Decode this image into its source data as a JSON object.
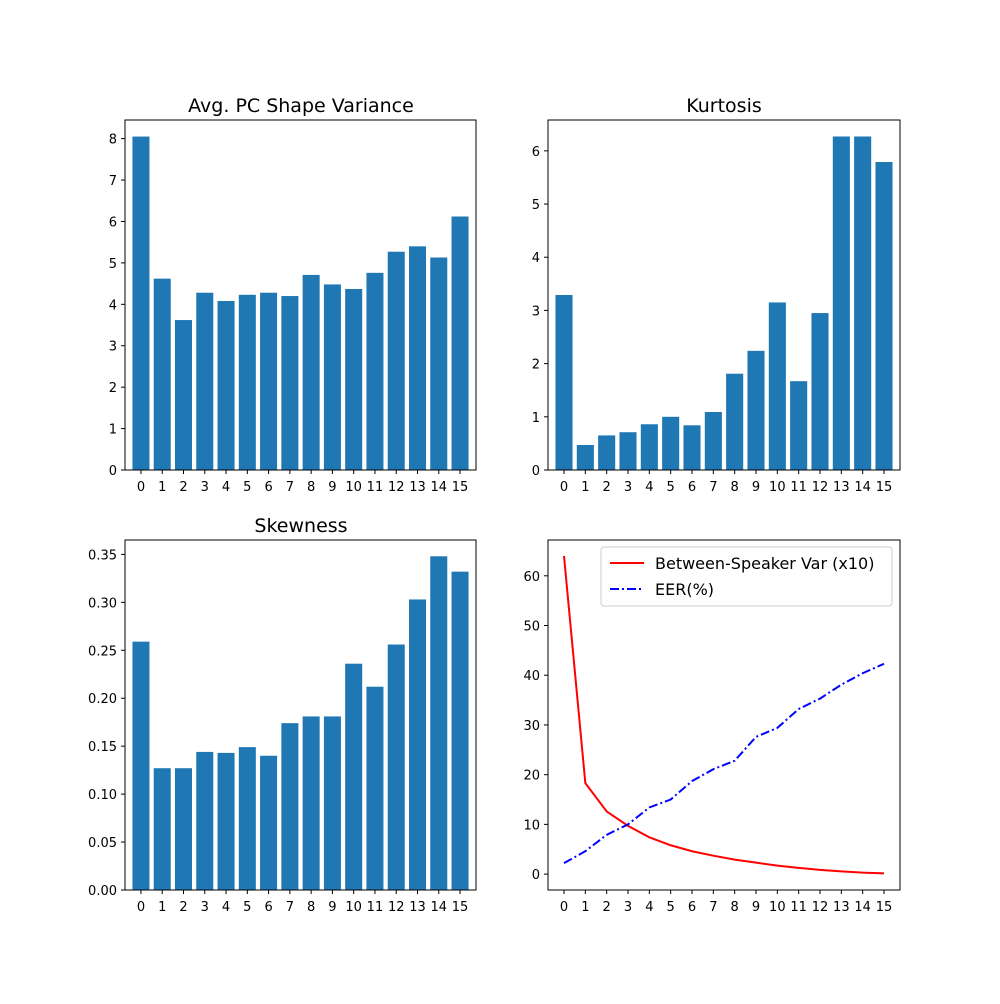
{
  "colors": {
    "bar": "#1f77b4",
    "speaker_var": "#ff0000",
    "eer": "#0000ff",
    "axes": "#000000",
    "background": "#ffffff"
  },
  "chart_data": [
    {
      "type": "bar",
      "title": "Avg. PC Shape Variance",
      "xlabel": "",
      "ylabel": "",
      "categories": [
        "0",
        "1",
        "2",
        "3",
        "4",
        "5",
        "6",
        "7",
        "8",
        "9",
        "10",
        "11",
        "12",
        "13",
        "14",
        "15"
      ],
      "values": [
        8.05,
        4.62,
        3.62,
        4.28,
        4.08,
        4.23,
        4.28,
        4.2,
        4.71,
        4.48,
        4.37,
        4.76,
        5.27,
        5.4,
        5.13,
        6.12
      ],
      "ylim": [
        0,
        8.45
      ],
      "yticks": [
        "0",
        "1",
        "2",
        "3",
        "4",
        "5",
        "6",
        "7",
        "8"
      ],
      "grid": false
    },
    {
      "type": "bar",
      "title": "Kurtosis",
      "xlabel": "",
      "ylabel": "",
      "categories": [
        "0",
        "1",
        "2",
        "3",
        "4",
        "5",
        "6",
        "7",
        "8",
        "9",
        "10",
        "11",
        "12",
        "13",
        "14",
        "15"
      ],
      "values": [
        3.29,
        0.47,
        0.65,
        0.71,
        0.86,
        1.0,
        0.84,
        1.09,
        1.81,
        2.24,
        3.15,
        1.67,
        2.95,
        6.27,
        6.27,
        5.79
      ],
      "ylim": [
        0,
        6.58
      ],
      "yticks": [
        "0",
        "1",
        "2",
        "3",
        "4",
        "5",
        "6"
      ],
      "grid": false
    },
    {
      "type": "bar",
      "title": "Skewness",
      "xlabel": "",
      "ylabel": "",
      "categories": [
        "0",
        "1",
        "2",
        "3",
        "4",
        "5",
        "6",
        "7",
        "8",
        "9",
        "10",
        "11",
        "12",
        "13",
        "14",
        "15"
      ],
      "values": [
        0.259,
        0.127,
        0.127,
        0.144,
        0.143,
        0.149,
        0.14,
        0.174,
        0.181,
        0.181,
        0.236,
        0.212,
        0.256,
        0.303,
        0.348,
        0.332
      ],
      "ylim": [
        0,
        0.365
      ],
      "yticks": [
        "0.00",
        "0.05",
        "0.10",
        "0.15",
        "0.20",
        "0.25",
        "0.30",
        "0.35"
      ],
      "grid": false
    },
    {
      "type": "line",
      "title": "",
      "xlabel": "",
      "ylabel": "",
      "x": [
        0,
        1,
        2,
        3,
        4,
        5,
        6,
        7,
        8,
        9,
        10,
        11,
        12,
        13,
        14,
        15
      ],
      "xticks": [
        "0",
        "1",
        "2",
        "3",
        "4",
        "5",
        "6",
        "7",
        "8",
        "9",
        "10",
        "11",
        "12",
        "13",
        "14",
        "15"
      ],
      "xlim": [
        -0.75,
        15.75
      ],
      "ylim": [
        -3.2,
        67.2
      ],
      "yticks": [
        "0",
        "10",
        "20",
        "30",
        "40",
        "50",
        "60"
      ],
      "legend_position": "top-right",
      "grid": false,
      "series": [
        {
          "name": "Between-Speaker Var (x10)",
          "style": "solid",
          "values": [
            64.0,
            18.3,
            12.6,
            9.7,
            7.4,
            5.8,
            4.6,
            3.7,
            2.9,
            2.3,
            1.7,
            1.25,
            0.85,
            0.55,
            0.3,
            0.15
          ]
        },
        {
          "name": "EER(%)",
          "style": "dash-dot",
          "values": [
            2.2,
            4.6,
            7.9,
            10.0,
            13.4,
            15.0,
            18.7,
            21.1,
            22.8,
            27.6,
            29.4,
            33.2,
            35.3,
            38.1,
            40.4,
            42.3
          ]
        }
      ]
    }
  ]
}
